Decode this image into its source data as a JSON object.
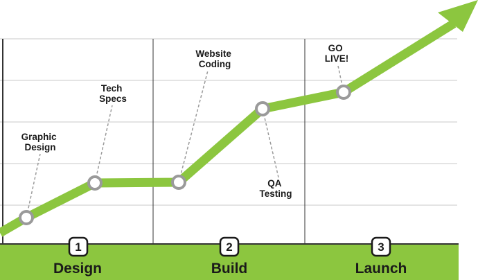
{
  "colors": {
    "line": "#8cc63f",
    "band": "#8cc63f",
    "node_stroke": "#9a9a9a",
    "node_fill": "#ffffff",
    "grid": "#c8c8c8",
    "divider": "#333333",
    "leader": "#9a9a9a",
    "text": "#1a1a1a"
  },
  "phases": [
    {
      "number": "1",
      "label": "Design"
    },
    {
      "number": "2",
      "label": "Build"
    },
    {
      "number": "3",
      "label": "Launch"
    }
  ],
  "milestones": [
    {
      "id": "graphic-design",
      "line1": "Graphic",
      "line2": "Design"
    },
    {
      "id": "tech-specs",
      "line1": "Tech",
      "line2": "Specs"
    },
    {
      "id": "website-coding",
      "line1": "Website",
      "line2": "Coding"
    },
    {
      "id": "qa-testing",
      "line1": "QA",
      "line2": "Testing"
    },
    {
      "id": "go-live",
      "line1": "GO",
      "line2": "LIVE!"
    }
  ]
}
